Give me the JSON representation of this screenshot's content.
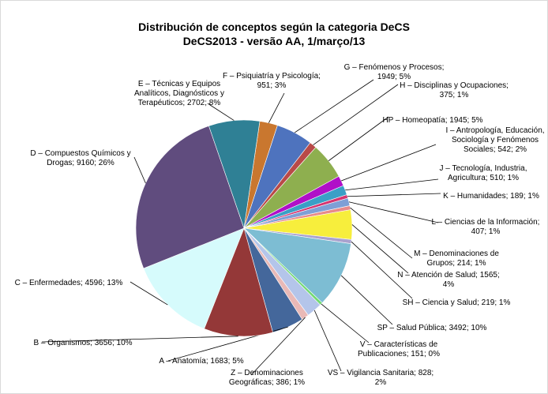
{
  "chart_data": {
    "type": "pie",
    "title": "Distribución de conceptos según la categoria DeCS",
    "subtitle": "DeCS2013 - versão AA, 1/março/13",
    "start_angle_deg": 8.4,
    "direction": "clockwise",
    "slices": [
      {
        "label": "F – Psiquiatría y Psicología",
        "value": 951,
        "percent": "3%",
        "color": "#C9772F"
      },
      {
        "label": "G – Fenómenos y Procesos",
        "value": 1949,
        "percent": "5%",
        "color": "#4E73BE"
      },
      {
        "label": "H – Disciplinas y Ocupaciones",
        "value": 375,
        "percent": "1%",
        "color": "#B94A48"
      },
      {
        "label": "HP – Homeopatía",
        "value": 1945,
        "percent": "5%",
        "color": "#8EAF4F"
      },
      {
        "label": "I – Antropología, Educación, Sociología y Fenómenos Sociales",
        "value": 542,
        "percent": "2%",
        "color": "#B010C8"
      },
      {
        "label": "J – Tecnología, Industria, Agricultura",
        "value": 510,
        "percent": "1%",
        "color": "#3A9FC6"
      },
      {
        "label": "K – Humanidades",
        "value": 189,
        "percent": "1%",
        "color": "#D63470"
      },
      {
        "label": "L – Ciencias de la Información",
        "value": 407,
        "percent": "1%",
        "color": "#7E9FD6"
      },
      {
        "label": "M – Denominaciones de Grupos",
        "value": 214,
        "percent": "1%",
        "color": "#E88A8A"
      },
      {
        "label": "N – Atención de Salud",
        "value": 1565,
        "percent": "4%",
        "color": "#F7EE3C"
      },
      {
        "label": "SH – Ciencia y Salud",
        "value": 219,
        "percent": "1%",
        "color": "#A9A2CE"
      },
      {
        "label": "SP – Salud Pública",
        "value": 3492,
        "percent": "10%",
        "color": "#7DBDD3"
      },
      {
        "label": "V – Características de Publicaciones",
        "value": 151,
        "percent": "0%",
        "color": "#71D971"
      },
      {
        "label": "VS – Vigilancia Sanitaria",
        "value": 828,
        "percent": "2%",
        "color": "#B4C5EA"
      },
      {
        "label": "Z – Denominaciones Geográficas",
        "value": 386,
        "percent": "1%",
        "color": "#E9B9B7"
      },
      {
        "label": "A – Anatomía",
        "value": 1683,
        "percent": "5%",
        "color": "#44679B"
      },
      {
        "label": "B – Organismos",
        "value": 3656,
        "percent": "10%",
        "color": "#943838"
      },
      {
        "label": "C – Enfermedades",
        "value": 4596,
        "percent": "13%",
        "color": "#D6FBFC"
      },
      {
        "label": "D – Compuestos Químicos y Drogas",
        "value": 9160,
        "percent": "26%",
        "color": "#604C7E"
      },
      {
        "label": "E – Técnicas y Equipos Analíticos, Diagnósticos y Terapéuticos",
        "value": 2702,
        "percent": "8%",
        "color": "#2F8095"
      }
    ],
    "data_labels": [
      {
        "lines": [
          "F –  Psiquiatría y Psicología;",
          "951; 3%"
        ]
      },
      {
        "lines": [
          "G – Fenómenos y Procesos;",
          "1949; 5%"
        ]
      },
      {
        "lines": [
          "H –  Disciplinas y Ocupaciones;",
          "375; 1%"
        ]
      },
      {
        "lines": [
          "HP – Homeopatía; 1945; 5%"
        ]
      },
      {
        "lines": [
          "I – Antropología, Educación,",
          "Sociología y  Fenómenos",
          "Sociales; 542; 2%"
        ]
      },
      {
        "lines": [
          "J – Tecnología, Industria,",
          "Agricultura; 510; 1%"
        ]
      },
      {
        "lines": [
          "K – Humanidades; 189; 1%"
        ]
      },
      {
        "lines": [
          "L – Ciencias de la Información;",
          "407; 1%"
        ]
      },
      {
        "lines": [
          "M – Denominaciones de",
          "Grupos; 214; 1%"
        ]
      },
      {
        "lines": [
          "N – Atención de Salud; 1565;",
          "4%"
        ]
      },
      {
        "lines": [
          "SH – Ciencia y Salud; 219; 1%"
        ]
      },
      {
        "lines": [
          "SP – Salud Pública; 3492; 10%"
        ]
      },
      {
        "lines": [
          "V – Características de",
          "Publicaciones; 151; 0%"
        ]
      },
      {
        "lines": [
          "VS – Vigilancia Sanitaria; 828;",
          "2%"
        ]
      },
      {
        "lines": [
          "Z – Denominaciones",
          "Geográficas; 386; 1%"
        ]
      },
      {
        "lines": [
          "A – Anatomía; 1683; 5%"
        ]
      },
      {
        "lines": [
          "B – Organismos; 3656; 10%"
        ]
      },
      {
        "lines": [
          "C – Enfermedades; 4596; 13%"
        ]
      },
      {
        "lines": [
          "D – Compuestos Químicos y",
          "Drogas; 9160; 26%"
        ]
      },
      {
        "lines": [
          "E – Técnicas y Equipos",
          "Analíticos, Diagnósticos y",
          "Terapéuticos; 2702; 8%"
        ]
      }
    ]
  }
}
